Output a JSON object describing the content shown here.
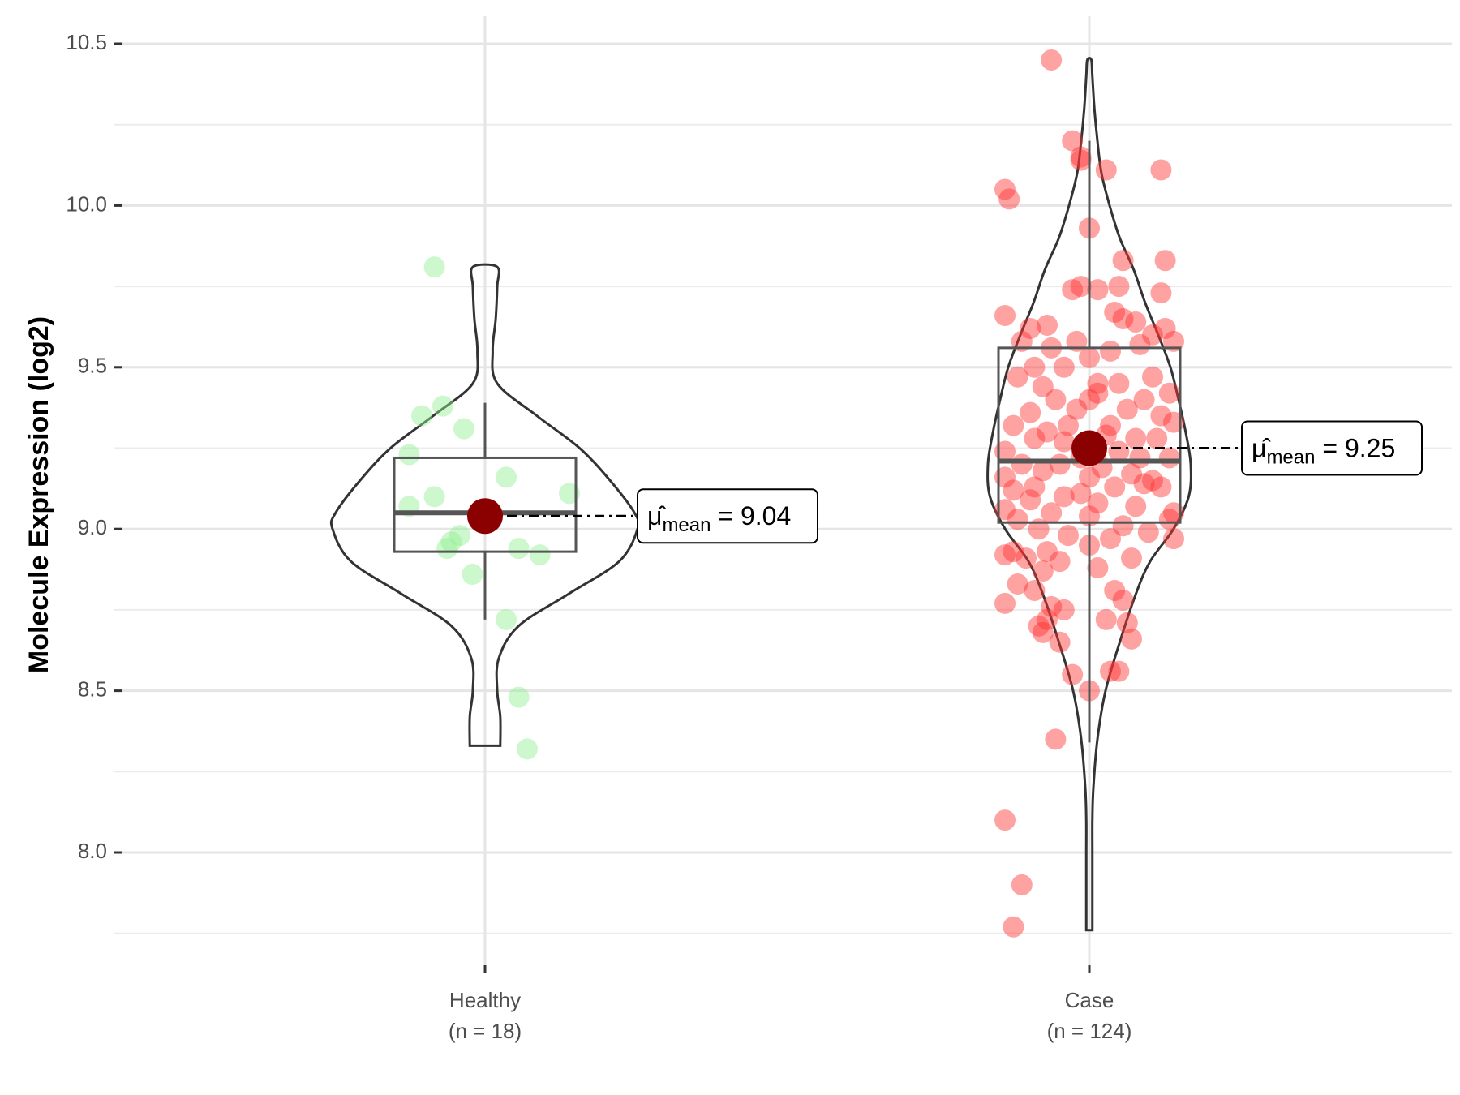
{
  "chart_data": {
    "type": "violin-box-jitter",
    "ylabel": "Molecule Expression (log2)",
    "xlabel": "",
    "ylim": [
      7.7,
      10.55
    ],
    "yticks": [
      8.0,
      8.5,
      9.0,
      9.5,
      10.0,
      10.5
    ],
    "ytick_labels": [
      "8.0",
      "8.5",
      "9.0",
      "9.5",
      "10.0",
      "10.5"
    ],
    "groups": [
      {
        "name": "Healthy",
        "label_line1": "Healthy",
        "label_line2": "(n = 18)",
        "n": 18,
        "color": "#90ee90",
        "mean": 9.04,
        "mean_label": "9.04",
        "box": {
          "q1": 8.93,
          "median": 9.05,
          "q3": 9.22,
          "whisker_low": 8.72,
          "whisker_high": 9.39
        },
        "violin": {
          "min": 8.33,
          "max": 9.81,
          "density": [
            [
              8.33,
              0.1
            ],
            [
              8.42,
              0.1
            ],
            [
              8.5,
              0.08
            ],
            [
              8.6,
              0.09
            ],
            [
              8.7,
              0.22
            ],
            [
              8.8,
              0.55
            ],
            [
              8.9,
              0.88
            ],
            [
              9.0,
              1.0
            ],
            [
              9.05,
              0.98
            ],
            [
              9.15,
              0.82
            ],
            [
              9.25,
              0.62
            ],
            [
              9.35,
              0.34
            ],
            [
              9.45,
              0.08
            ],
            [
              9.55,
              0.05
            ],
            [
              9.65,
              0.07
            ],
            [
              9.75,
              0.08
            ],
            [
              9.81,
              0.08
            ]
          ]
        },
        "points": [
          [
            -0.12,
            9.81
          ],
          [
            -0.15,
            9.35
          ],
          [
            -0.1,
            9.38
          ],
          [
            -0.05,
            9.31
          ],
          [
            -0.18,
            9.23
          ],
          [
            0.05,
            9.16
          ],
          [
            0.2,
            9.11
          ],
          [
            -0.12,
            9.1
          ],
          [
            -0.18,
            9.07
          ],
          [
            -0.06,
            8.98
          ],
          [
            -0.08,
            8.96
          ],
          [
            -0.09,
            8.94
          ],
          [
            0.08,
            8.94
          ],
          [
            0.13,
            8.92
          ],
          [
            -0.03,
            8.86
          ],
          [
            0.05,
            8.72
          ],
          [
            0.08,
            8.48
          ],
          [
            0.1,
            8.32
          ]
        ]
      },
      {
        "name": "Case",
        "label_line1": "Case",
        "label_line2": "(n = 124)",
        "n": 124,
        "color": "#ff3030",
        "mean": 9.25,
        "mean_label": "9.25",
        "box": {
          "q1": 9.02,
          "median": 9.21,
          "q3": 9.56,
          "whisker_low": 8.34,
          "whisker_high": 10.2
        },
        "violin": {
          "min": 7.76,
          "max": 10.45,
          "density": [
            [
              7.76,
              0.03
            ],
            [
              7.9,
              0.03
            ],
            [
              8.0,
              0.03
            ],
            [
              8.1,
              0.03
            ],
            [
              8.2,
              0.04
            ],
            [
              8.35,
              0.08
            ],
            [
              8.5,
              0.16
            ],
            [
              8.65,
              0.3
            ],
            [
              8.8,
              0.46
            ],
            [
              8.9,
              0.6
            ],
            [
              9.0,
              0.83
            ],
            [
              9.1,
              0.98
            ],
            [
              9.2,
              1.0
            ],
            [
              9.3,
              0.95
            ],
            [
              9.4,
              0.88
            ],
            [
              9.5,
              0.8
            ],
            [
              9.6,
              0.68
            ],
            [
              9.7,
              0.55
            ],
            [
              9.8,
              0.44
            ],
            [
              9.9,
              0.3
            ],
            [
              10.0,
              0.2
            ],
            [
              10.1,
              0.12
            ],
            [
              10.2,
              0.08
            ],
            [
              10.3,
              0.05
            ],
            [
              10.4,
              0.03
            ],
            [
              10.45,
              0.02
            ]
          ]
        },
        "points": [
          [
            -0.09,
            10.45
          ],
          [
            -0.04,
            10.2
          ],
          [
            -0.02,
            10.15
          ],
          [
            0.04,
            10.11
          ],
          [
            0.17,
            10.11
          ],
          [
            -0.02,
            10.14
          ],
          [
            -0.2,
            10.05
          ],
          [
            -0.19,
            10.02
          ],
          [
            0.0,
            9.93
          ],
          [
            0.18,
            9.83
          ],
          [
            0.08,
            9.83
          ],
          [
            -0.02,
            9.75
          ],
          [
            0.02,
            9.74
          ],
          [
            0.07,
            9.75
          ],
          [
            0.17,
            9.73
          ],
          [
            -0.04,
            9.74
          ],
          [
            -0.2,
            9.66
          ],
          [
            0.06,
            9.67
          ],
          [
            0.08,
            9.65
          ],
          [
            -0.1,
            9.63
          ],
          [
            -0.14,
            9.62
          ],
          [
            0.11,
            9.64
          ],
          [
            0.15,
            9.6
          ],
          [
            0.18,
            9.62
          ],
          [
            0.2,
            9.58
          ],
          [
            0.12,
            9.57
          ],
          [
            -0.09,
            9.56
          ],
          [
            -0.16,
            9.58
          ],
          [
            0.0,
            9.53
          ],
          [
            0.05,
            9.55
          ],
          [
            -0.06,
            9.5
          ],
          [
            -0.13,
            9.5
          ],
          [
            0.15,
            9.47
          ],
          [
            0.07,
            9.45
          ],
          [
            0.02,
            9.42
          ],
          [
            -0.11,
            9.44
          ],
          [
            -0.17,
            9.47
          ],
          [
            0.19,
            9.42
          ],
          [
            0.13,
            9.4
          ],
          [
            -0.08,
            9.4
          ],
          [
            -0.03,
            9.37
          ],
          [
            0.0,
            9.4
          ],
          [
            0.09,
            9.37
          ],
          [
            -0.14,
            9.36
          ],
          [
            0.17,
            9.35
          ],
          [
            0.2,
            9.33
          ],
          [
            -0.05,
            9.32
          ],
          [
            0.05,
            9.32
          ],
          [
            -0.18,
            9.32
          ],
          [
            -0.1,
            9.3
          ],
          [
            0.11,
            9.28
          ],
          [
            -0.06,
            9.27
          ],
          [
            0.0,
            9.26
          ],
          [
            -0.13,
            9.28
          ],
          [
            0.16,
            9.28
          ],
          [
            -0.2,
            9.24
          ],
          [
            0.07,
            9.24
          ],
          [
            -0.02,
            9.22
          ],
          [
            0.19,
            9.22
          ],
          [
            0.12,
            9.22
          ],
          [
            -0.16,
            9.2
          ],
          [
            -0.07,
            9.2
          ],
          [
            0.03,
            9.19
          ],
          [
            -0.11,
            9.18
          ],
          [
            0.1,
            9.17
          ],
          [
            -0.2,
            9.16
          ],
          [
            0.0,
            9.16
          ],
          [
            0.15,
            9.15
          ],
          [
            0.13,
            9.14
          ],
          [
            -0.13,
            9.13
          ],
          [
            0.06,
            9.13
          ],
          [
            -0.18,
            9.12
          ],
          [
            0.17,
            9.13
          ],
          [
            -0.06,
            9.1
          ],
          [
            -0.14,
            9.09
          ],
          [
            0.02,
            9.08
          ],
          [
            0.11,
            9.07
          ],
          [
            -0.2,
            9.06
          ],
          [
            0.2,
            9.05
          ],
          [
            -0.09,
            9.05
          ],
          [
            0.0,
            9.04
          ],
          [
            -0.17,
            9.03
          ],
          [
            0.19,
            9.03
          ],
          [
            0.08,
            9.01
          ],
          [
            -0.12,
            9.0
          ],
          [
            0.14,
            8.99
          ],
          [
            -0.05,
            8.98
          ],
          [
            0.05,
            8.97
          ],
          [
            0.2,
            8.97
          ],
          [
            0.0,
            8.95
          ],
          [
            -0.18,
            8.93
          ],
          [
            -0.1,
            8.93
          ],
          [
            -0.2,
            8.92
          ],
          [
            -0.15,
            8.91
          ],
          [
            0.1,
            8.91
          ],
          [
            -0.07,
            8.9
          ],
          [
            0.02,
            8.88
          ],
          [
            -0.11,
            8.87
          ],
          [
            -0.17,
            8.83
          ],
          [
            0.06,
            8.81
          ],
          [
            -0.13,
            8.81
          ],
          [
            -0.2,
            8.77
          ],
          [
            -0.09,
            8.76
          ],
          [
            0.08,
            8.78
          ],
          [
            -0.06,
            8.75
          ],
          [
            -0.1,
            8.72
          ],
          [
            0.04,
            8.72
          ],
          [
            0.09,
            8.71
          ],
          [
            -0.12,
            8.7
          ],
          [
            -0.11,
            8.68
          ],
          [
            0.1,
            8.66
          ],
          [
            -0.07,
            8.65
          ],
          [
            0.05,
            8.56
          ],
          [
            0.07,
            8.56
          ],
          [
            -0.04,
            8.55
          ],
          [
            0.0,
            8.5
          ],
          [
            -0.08,
            8.35
          ],
          [
            -0.2,
            8.1
          ],
          [
            -0.16,
            7.9
          ],
          [
            -0.18,
            7.77
          ],
          [
            0.02,
            9.45
          ],
          [
            -0.03,
            9.58
          ],
          [
            0.04,
            9.29
          ],
          [
            -0.02,
            9.11
          ]
        ]
      }
    ]
  },
  "mean_symbol": "μ̂",
  "mean_subscript": "mean",
  "mean_equals": "="
}
